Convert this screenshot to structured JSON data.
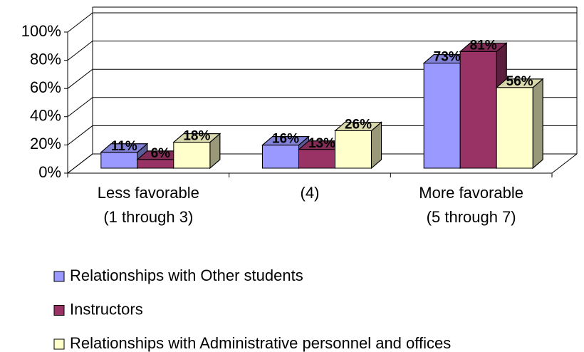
{
  "chart_data": {
    "type": "bar3d",
    "categories": [
      "Less favorable\n(1 through 3)",
      "(4)",
      "More favorable\n(5 through 7)"
    ],
    "series": [
      {
        "name": "Relationships with Other students",
        "color": "#9999ff",
        "values": [
          11,
          16,
          73
        ],
        "value_labels": [
          "11%",
          "16%",
          "73%"
        ]
      },
      {
        "name": "Instructors",
        "color": "#993366",
        "values": [
          6,
          13,
          81
        ],
        "value_labels": [
          "6%",
          "13%",
          "81%"
        ]
      },
      {
        "name": "Relationships with Administrative personnel and offices",
        "color": "#ffffcc",
        "values": [
          18,
          26,
          56
        ],
        "value_labels": [
          "18%",
          "26%",
          "56%"
        ]
      }
    ],
    "ylim": [
      0,
      100
    ],
    "yticks": [
      {
        "value": 0,
        "label": "0%"
      },
      {
        "value": 20,
        "label": "20%"
      },
      {
        "value": 40,
        "label": "40%"
      },
      {
        "value": 60,
        "label": "60%"
      },
      {
        "value": 80,
        "label": "80%"
      },
      {
        "value": 100,
        "label": "100%"
      }
    ],
    "grid": true,
    "legend": "bottom"
  }
}
